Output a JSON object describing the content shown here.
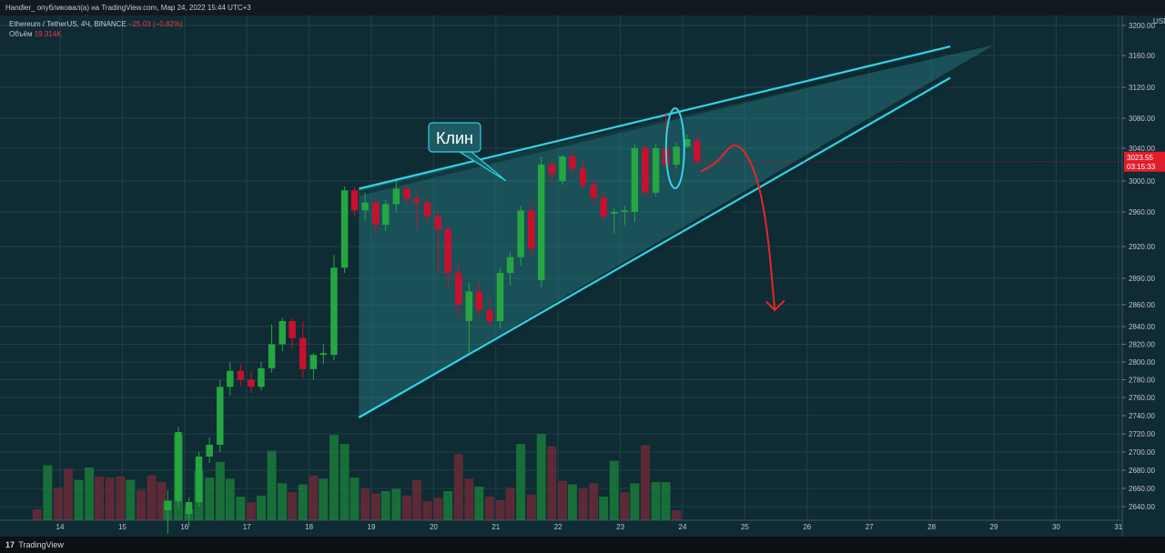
{
  "header": {
    "publisher_line": "Handler_ опубликовал(а) на TradingView.com, Мар 24, 2022 15:44 UTC+3"
  },
  "legend": {
    "symbol": "Ethereum / TetherUS, 4Ч, BINANCE",
    "change": "−25.03 (−0.82%)",
    "volume_label": "Объём",
    "volume_value": "19.314K"
  },
  "footer": {
    "logo_mark": "17",
    "logo_text": "TradingView"
  },
  "annotation": {
    "label": "Клин"
  },
  "price_tag": {
    "price": "3023.55",
    "countdown": "03:15:33"
  },
  "colors": {
    "up": "#26a641",
    "down": "#c8102e",
    "wedge": "#2fd4e6",
    "arrow": "#e5262b"
  },
  "chart_data": {
    "type": "candlestick",
    "unit": "USDT",
    "x_ticks": [
      "14",
      "15",
      "16",
      "17",
      "18",
      "19",
      "20",
      "21",
      "22",
      "23",
      "24",
      "25",
      "26",
      "27",
      "28",
      "29",
      "30",
      "31"
    ],
    "y_ticks": [
      2640,
      2660,
      2680,
      2700,
      2720,
      2740,
      2760,
      2780,
      2800,
      2820,
      2840,
      2860,
      2890,
      2920,
      2960,
      3000,
      3040,
      3080,
      3120,
      3160,
      3200
    ],
    "y_tick_labels": [
      "2640.00",
      "2660.00",
      "2680.00",
      "2700.00",
      "2720.00",
      "2740.00",
      "2760.00",
      "2780.00",
      "2800.00",
      "2820.00",
      "2840.00",
      "2860.00",
      "2890.00",
      "2920.00",
      "2960.00",
      "3000.00",
      "3040.00",
      "3080.00",
      "3120.00",
      "3160.00",
      "3200.00"
    ],
    "x_range": [
      13.6,
      31.1
    ],
    "candles": [
      {
        "t": 15.73,
        "o": 2636,
        "h": 2658,
        "l": 2610,
        "c": 2646
      },
      {
        "t": 15.9,
        "o": 2646,
        "h": 2728,
        "l": 2640,
        "c": 2722
      },
      {
        "t": 16.07,
        "o": 2632,
        "h": 2650,
        "l": 2618,
        "c": 2645
      },
      {
        "t": 16.23,
        "o": 2645,
        "h": 2700,
        "l": 2640,
        "c": 2695
      },
      {
        "t": 16.4,
        "o": 2695,
        "h": 2716,
        "l": 2688,
        "c": 2708
      },
      {
        "t": 16.57,
        "o": 2708,
        "h": 2780,
        "l": 2700,
        "c": 2772
      },
      {
        "t": 16.73,
        "o": 2772,
        "h": 2800,
        "l": 2762,
        "c": 2790
      },
      {
        "t": 16.9,
        "o": 2790,
        "h": 2798,
        "l": 2772,
        "c": 2780
      },
      {
        "t": 17.07,
        "o": 2780,
        "h": 2790,
        "l": 2765,
        "c": 2772
      },
      {
        "t": 17.23,
        "o": 2772,
        "h": 2800,
        "l": 2768,
        "c": 2793
      },
      {
        "t": 17.4,
        "o": 2793,
        "h": 2842,
        "l": 2788,
        "c": 2820
      },
      {
        "t": 17.57,
        "o": 2820,
        "h": 2848,
        "l": 2812,
        "c": 2845
      },
      {
        "t": 17.73,
        "o": 2845,
        "h": 2848,
        "l": 2815,
        "c": 2827
      },
      {
        "t": 17.9,
        "o": 2827,
        "h": 2845,
        "l": 2782,
        "c": 2792
      },
      {
        "t": 18.07,
        "o": 2792,
        "h": 2810,
        "l": 2780,
        "c": 2808
      },
      {
        "t": 18.23,
        "o": 2808,
        "h": 2820,
        "l": 2798,
        "c": 2810
      },
      {
        "t": 18.4,
        "o": 2808,
        "h": 2912,
        "l": 2802,
        "c": 2900
      },
      {
        "t": 18.57,
        "o": 2900,
        "h": 2993,
        "l": 2895,
        "c": 2988
      },
      {
        "t": 18.73,
        "o": 2988,
        "h": 2993,
        "l": 2955,
        "c": 2962
      },
      {
        "t": 18.9,
        "o": 2962,
        "h": 2985,
        "l": 2950,
        "c": 2972
      },
      {
        "t": 19.07,
        "o": 2972,
        "h": 2978,
        "l": 2935,
        "c": 2945
      },
      {
        "t": 19.23,
        "o": 2945,
        "h": 2975,
        "l": 2938,
        "c": 2970
      },
      {
        "t": 19.4,
        "o": 2970,
        "h": 3000,
        "l": 2960,
        "c": 2990
      },
      {
        "t": 19.57,
        "o": 2990,
        "h": 2995,
        "l": 2970,
        "c": 2977
      },
      {
        "t": 19.73,
        "o": 2977,
        "h": 2988,
        "l": 2940,
        "c": 2972
      },
      {
        "t": 19.9,
        "o": 2972,
        "h": 2978,
        "l": 2948,
        "c": 2955
      },
      {
        "t": 20.07,
        "o": 2955,
        "h": 2960,
        "l": 2895,
        "c": 2940
      },
      {
        "t": 20.23,
        "o": 2940,
        "h": 2945,
        "l": 2880,
        "c": 2895
      },
      {
        "t": 20.4,
        "o": 2895,
        "h": 2905,
        "l": 2848,
        "c": 2860
      },
      {
        "t": 20.57,
        "o": 2845,
        "h": 2885,
        "l": 2810,
        "c": 2875
      },
      {
        "t": 20.73,
        "o": 2875,
        "h": 2885,
        "l": 2850,
        "c": 2855
      },
      {
        "t": 20.9,
        "o": 2855,
        "h": 2870,
        "l": 2840,
        "c": 2845
      },
      {
        "t": 21.07,
        "o": 2845,
        "h": 2900,
        "l": 2838,
        "c": 2895
      },
      {
        "t": 21.23,
        "o": 2895,
        "h": 2915,
        "l": 2882,
        "c": 2910
      },
      {
        "t": 21.4,
        "o": 2910,
        "h": 2968,
        "l": 2902,
        "c": 2962
      },
      {
        "t": 21.57,
        "o": 2962,
        "h": 2970,
        "l": 2912,
        "c": 2918
      },
      {
        "t": 21.73,
        "o": 2888,
        "h": 3030,
        "l": 2880,
        "c": 3020
      },
      {
        "t": 21.9,
        "o": 3020,
        "h": 3028,
        "l": 3000,
        "c": 3008
      },
      {
        "t": 22.07,
        "o": 3000,
        "h": 3032,
        "l": 2995,
        "c": 3030
      },
      {
        "t": 22.23,
        "o": 3030,
        "h": 3038,
        "l": 3008,
        "c": 3015
      },
      {
        "t": 22.4,
        "o": 3015,
        "h": 3025,
        "l": 2990,
        "c": 2995
      },
      {
        "t": 22.57,
        "o": 2995,
        "h": 3002,
        "l": 2970,
        "c": 2978
      },
      {
        "t": 22.73,
        "o": 2978,
        "h": 2985,
        "l": 2950,
        "c": 2955
      },
      {
        "t": 22.9,
        "o": 2958,
        "h": 2965,
        "l": 2935,
        "c": 2960
      },
      {
        "t": 23.07,
        "o": 2960,
        "h": 2968,
        "l": 2945,
        "c": 2962
      },
      {
        "t": 23.23,
        "o": 2960,
        "h": 3045,
        "l": 2948,
        "c": 3040
      },
      {
        "t": 23.4,
        "o": 3040,
        "h": 3045,
        "l": 2980,
        "c": 2985
      },
      {
        "t": 23.57,
        "o": 2985,
        "h": 3045,
        "l": 2980,
        "c": 3040
      },
      {
        "t": 23.73,
        "o": 3040,
        "h": 3088,
        "l": 3015,
        "c": 3020
      },
      {
        "t": 23.9,
        "o": 3020,
        "h": 3048,
        "l": 3015,
        "c": 3042
      },
      {
        "t": 24.07,
        "o": 3042,
        "h": 3058,
        "l": 3040,
        "c": 3052
      },
      {
        "t": 24.23,
        "o": 3050,
        "h": 3058,
        "l": 3020,
        "c": 3024
      }
    ],
    "volume": [
      {
        "t": 13.63,
        "v": 10,
        "up": false
      },
      {
        "t": 13.8,
        "v": 49,
        "up": true
      },
      {
        "t": 13.97,
        "v": 29,
        "up": false
      },
      {
        "t": 14.13,
        "v": 46,
        "up": false
      },
      {
        "t": 14.3,
        "v": 36,
        "up": true
      },
      {
        "t": 14.47,
        "v": 47,
        "up": true
      },
      {
        "t": 14.63,
        "v": 39,
        "up": false
      },
      {
        "t": 14.8,
        "v": 38,
        "up": false
      },
      {
        "t": 14.97,
        "v": 39,
        "up": false
      },
      {
        "t": 15.13,
        "v": 36,
        "up": true
      },
      {
        "t": 15.3,
        "v": 27,
        "up": false
      },
      {
        "t": 15.47,
        "v": 40,
        "up": false
      },
      {
        "t": 15.63,
        "v": 34,
        "up": false
      },
      {
        "t": 15.73,
        "v": 18,
        "up": true
      },
      {
        "t": 15.9,
        "v": 76,
        "up": true
      },
      {
        "t": 16.07,
        "v": 10,
        "up": true
      },
      {
        "t": 16.23,
        "v": 44,
        "up": true
      },
      {
        "t": 16.4,
        "v": 38,
        "up": true
      },
      {
        "t": 16.57,
        "v": 52,
        "up": true
      },
      {
        "t": 16.73,
        "v": 37,
        "up": true
      },
      {
        "t": 16.9,
        "v": 21,
        "up": true
      },
      {
        "t": 17.07,
        "v": 16,
        "up": false
      },
      {
        "t": 17.23,
        "v": 22,
        "up": true
      },
      {
        "t": 17.4,
        "v": 62,
        "up": true
      },
      {
        "t": 17.57,
        "v": 33,
        "up": true
      },
      {
        "t": 17.73,
        "v": 25,
        "up": false
      },
      {
        "t": 17.9,
        "v": 32,
        "up": true
      },
      {
        "t": 18.07,
        "v": 40,
        "up": false
      },
      {
        "t": 18.23,
        "v": 37,
        "up": true
      },
      {
        "t": 18.4,
        "v": 76,
        "up": true
      },
      {
        "t": 18.57,
        "v": 68,
        "up": true
      },
      {
        "t": 18.73,
        "v": 38,
        "up": true
      },
      {
        "t": 18.9,
        "v": 28,
        "up": false
      },
      {
        "t": 19.07,
        "v": 24,
        "up": false
      },
      {
        "t": 19.23,
        "v": 26,
        "up": true
      },
      {
        "t": 19.4,
        "v": 28,
        "up": true
      },
      {
        "t": 19.57,
        "v": 22,
        "up": false
      },
      {
        "t": 19.73,
        "v": 36,
        "up": false
      },
      {
        "t": 19.9,
        "v": 17,
        "up": false
      },
      {
        "t": 20.07,
        "v": 20,
        "up": false
      },
      {
        "t": 20.23,
        "v": 26,
        "up": true
      },
      {
        "t": 20.4,
        "v": 59,
        "up": false
      },
      {
        "t": 20.57,
        "v": 37,
        "up": false
      },
      {
        "t": 20.73,
        "v": 30,
        "up": true
      },
      {
        "t": 20.9,
        "v": 21,
        "up": false
      },
      {
        "t": 21.07,
        "v": 18,
        "up": false
      },
      {
        "t": 21.23,
        "v": 29,
        "up": false
      },
      {
        "t": 21.4,
        "v": 68,
        "up": true
      },
      {
        "t": 21.57,
        "v": 23,
        "up": false
      },
      {
        "t": 21.73,
        "v": 77,
        "up": true
      },
      {
        "t": 21.9,
        "v": 66,
        "up": false
      },
      {
        "t": 22.07,
        "v": 35,
        "up": false
      },
      {
        "t": 22.23,
        "v": 32,
        "up": true
      },
      {
        "t": 22.4,
        "v": 28,
        "up": false
      },
      {
        "t": 22.57,
        "v": 33,
        "up": false
      },
      {
        "t": 22.73,
        "v": 21,
        "up": true
      },
      {
        "t": 22.9,
        "v": 53,
        "up": true
      },
      {
        "t": 23.07,
        "v": 25,
        "up": false
      },
      {
        "t": 23.23,
        "v": 33,
        "up": true
      },
      {
        "t": 23.4,
        "v": 67,
        "up": false
      },
      {
        "t": 23.57,
        "v": 34,
        "up": true
      },
      {
        "t": 23.73,
        "v": 34,
        "up": true
      },
      {
        "t": 23.9,
        "v": 9,
        "up": false
      }
    ],
    "wedge_lines": [
      {
        "from": {
          "t": 18.8,
          "p": 2990
        },
        "to": {
          "t": 28.3,
          "p": 3172
        }
      },
      {
        "from": {
          "t": 18.8,
          "p": 2738
        },
        "to": {
          "t": 28.3,
          "p": 3132
        }
      }
    ],
    "wedge_fill_apex": {
      "t": 29.0,
      "p": 3174
    },
    "arrow_path": [
      {
        "t": 24.3,
        "p": 3012
      },
      {
        "t": 24.55,
        "p": 3022
      },
      {
        "t": 24.85,
        "p": 3052
      },
      {
        "t": 25.15,
        "p": 3018
      },
      {
        "t": 25.35,
        "p": 2950
      },
      {
        "t": 25.48,
        "p": 2855
      }
    ],
    "highlight_ellipse": {
      "t": 23.88,
      "p": 3040
    },
    "last_price": 3023.55
  }
}
